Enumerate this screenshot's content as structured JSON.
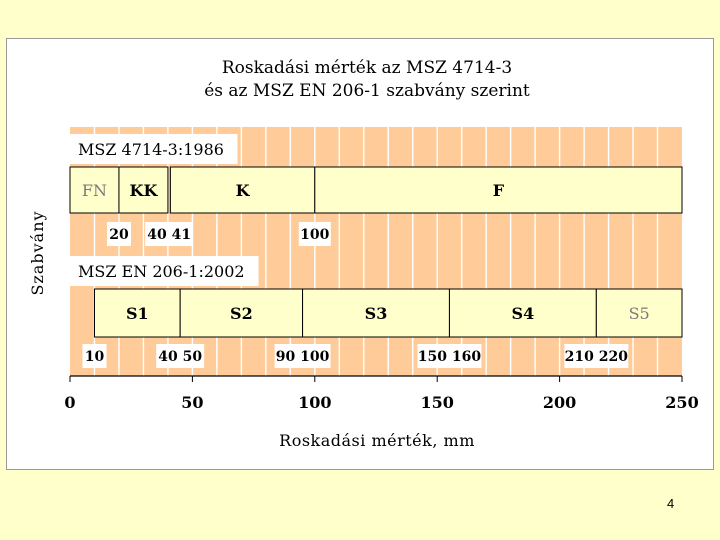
{
  "page_number": "4",
  "chart_data": {
    "type": "bar",
    "title": [
      "Roskadási mérték az MSZ 4714-3",
      "és az MSZ EN 206-1 szabvány szerint"
    ],
    "xlabel": "Roskadási mérték, mm",
    "ylabel": "Szabvány",
    "xlim": [
      0,
      250
    ],
    "xticks": [
      0,
      50,
      100,
      150,
      200,
      250
    ],
    "grid": true,
    "colors": {
      "band": "#ffcc99",
      "bar": "#ffffcc",
      "grid": "#ffffff",
      "gray_text": "#7a7a7a"
    },
    "standards": [
      {
        "name": "MSZ 4714-3:1986",
        "classes": [
          {
            "label": "FN",
            "from": 0,
            "to": 20,
            "gray": true
          },
          {
            "label": "KK",
            "from": 20,
            "to": 40
          },
          {
            "label": "K",
            "from": 41,
            "to": 100
          },
          {
            "label": "F",
            "from": 100,
            "to": 250
          }
        ],
        "boundaries": [
          {
            "text": "20",
            "x": 20
          },
          {
            "text": "40 41",
            "x": 40.5
          },
          {
            "text": "100",
            "x": 100
          }
        ]
      },
      {
        "name": "MSZ EN 206-1:2002",
        "classes": [
          {
            "label": "S1",
            "from": 10,
            "to": 45
          },
          {
            "label": "S2",
            "from": 45,
            "to": 95
          },
          {
            "label": "S3",
            "from": 95,
            "to": 155
          },
          {
            "label": "S4",
            "from": 155,
            "to": 215
          },
          {
            "label": "S5",
            "from": 215,
            "to": 250,
            "gray": true
          }
        ],
        "boundaries": [
          {
            "text": "10",
            "x": 10
          },
          {
            "text": "40 50",
            "x": 45
          },
          {
            "text": "90 100",
            "x": 95
          },
          {
            "text": "150 160",
            "x": 155
          },
          {
            "text": "210 220",
            "x": 215
          }
        ]
      }
    ]
  }
}
